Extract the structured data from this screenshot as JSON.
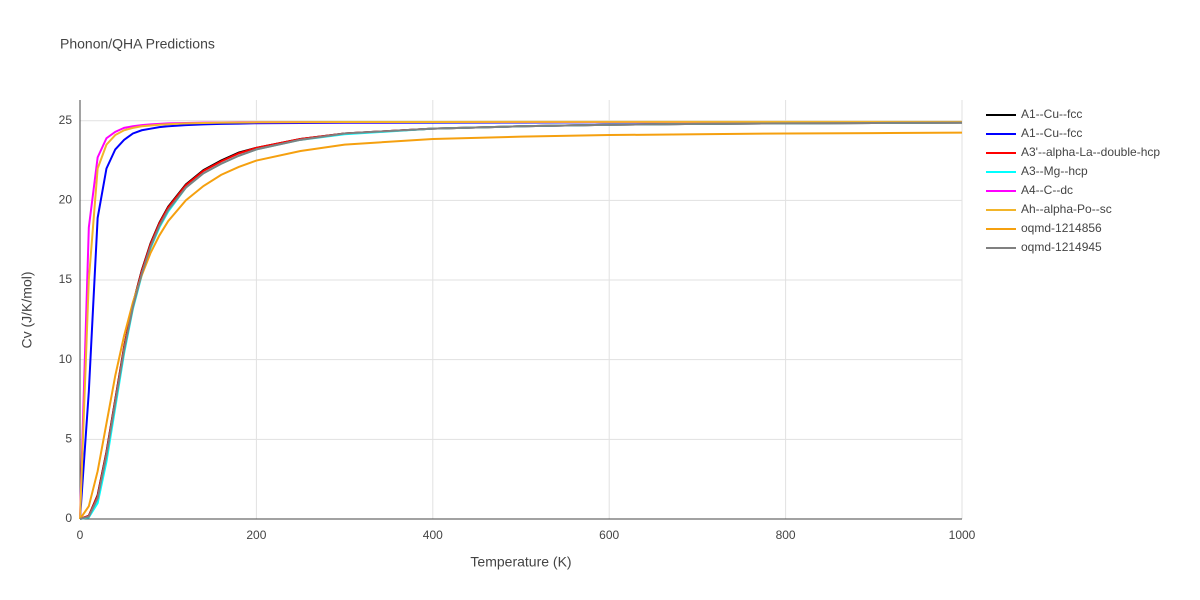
{
  "chart_data": {
    "type": "line",
    "title": "Phonon/QHA Predictions",
    "x_label": "Temperature (K)",
    "y_label": "Cv (J/K/mol)",
    "x": [
      0,
      10,
      20,
      30,
      40,
      50,
      60,
      70,
      80,
      90,
      100,
      120,
      140,
      160,
      180,
      200,
      250,
      300,
      400,
      500,
      600,
      700,
      800,
      900,
      1000
    ],
    "series": [
      {
        "name": "A1--Cu--fcc",
        "color": "#000000",
        "values": [
          0,
          0.2,
          1.5,
          4.2,
          7.5,
          10.8,
          13.5,
          15.6,
          17.3,
          18.6,
          19.6,
          21.0,
          21.9,
          22.5,
          23.0,
          23.3,
          23.85,
          24.2,
          24.5,
          24.65,
          24.75,
          24.8,
          24.83,
          24.86,
          24.88
        ]
      },
      {
        "name": "A1--Cu--fcc",
        "color": "#0000ff",
        "values": [
          0,
          8,
          18.9,
          22,
          23.2,
          23.8,
          24.2,
          24.4,
          24.5,
          24.6,
          24.65,
          24.72,
          24.77,
          24.8,
          24.82,
          24.84,
          24.86,
          24.87,
          24.88,
          24.89,
          24.9,
          24.9,
          24.9,
          24.9,
          24.9
        ]
      },
      {
        "name": "A3'--alpha-La--double-hcp",
        "color": "#ff0000",
        "values": [
          0,
          0.2,
          1.45,
          4.15,
          7.45,
          10.75,
          13.45,
          15.55,
          17.25,
          18.55,
          19.55,
          20.95,
          21.85,
          22.45,
          22.95,
          23.3,
          23.85,
          24.2,
          24.5,
          24.65,
          24.75,
          24.8,
          24.83,
          24.86,
          24.88
        ]
      },
      {
        "name": "A3--Mg--hcp",
        "color": "#00ffff",
        "values": [
          0,
          0.1,
          1.0,
          3.6,
          7.0,
          10.4,
          13.2,
          15.3,
          17.0,
          18.3,
          19.3,
          20.8,
          21.7,
          22.3,
          22.8,
          23.2,
          23.8,
          24.15,
          24.5,
          24.65,
          24.75,
          24.8,
          24.83,
          24.86,
          24.88
        ]
      },
      {
        "name": "A4--C--dc",
        "color": "#ff00ff",
        "values": [
          0,
          18.3,
          22.7,
          23.9,
          24.3,
          24.55,
          24.65,
          24.72,
          24.77,
          24.8,
          24.83,
          24.86,
          24.88,
          24.89,
          24.9,
          24.9,
          24.91,
          24.91,
          24.92,
          24.92,
          24.92,
          24.92,
          24.92,
          24.92,
          24.92
        ]
      },
      {
        "name": "Ah--alpha-Po--sc",
        "color": "#f2b52a",
        "values": [
          0,
          15,
          22,
          23.5,
          24.1,
          24.4,
          24.55,
          24.65,
          24.7,
          24.75,
          24.78,
          24.83,
          24.86,
          24.88,
          24.89,
          24.9,
          24.91,
          24.92,
          24.92,
          24.93,
          24.93,
          24.93,
          24.93,
          24.93,
          24.93
        ]
      },
      {
        "name": "oqmd-1214856",
        "color": "#f5a00f",
        "values": [
          0,
          0.8,
          3.0,
          6.0,
          9.0,
          11.5,
          13.6,
          15.3,
          16.7,
          17.8,
          18.7,
          20.0,
          20.9,
          21.6,
          22.1,
          22.5,
          23.1,
          23.5,
          23.85,
          24.0,
          24.1,
          24.15,
          24.2,
          24.22,
          24.25
        ]
      },
      {
        "name": "oqmd-1214945",
        "color": "#808080",
        "values": [
          0,
          0.15,
          1.3,
          4.0,
          7.3,
          10.6,
          13.3,
          15.4,
          17.1,
          18.4,
          19.4,
          20.8,
          21.7,
          22.3,
          22.8,
          23.2,
          23.8,
          24.2,
          24.5,
          24.65,
          24.75,
          24.8,
          24.83,
          24.86,
          24.88
        ]
      }
    ],
    "xlim": [
      0,
      1000
    ],
    "ylim": [
      0,
      26.3
    ],
    "xticks": [
      0,
      200,
      400,
      600,
      800,
      1000
    ],
    "yticks": [
      0,
      5,
      10,
      15,
      20,
      25
    ],
    "grid": true
  }
}
